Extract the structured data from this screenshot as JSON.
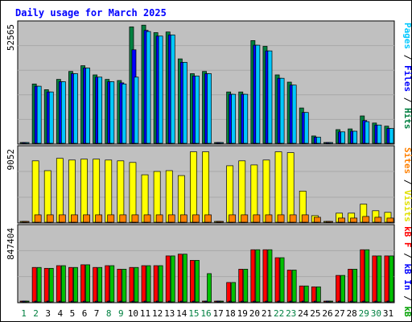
{
  "chart_data": {
    "type": "bar",
    "title": "Daily usage for March 2025",
    "days": [
      "1",
      "2",
      "3",
      "4",
      "5",
      "6",
      "7",
      "8",
      "9",
      "10",
      "11",
      "12",
      "13",
      "14",
      "15",
      "16",
      "17",
      "18",
      "19",
      "20",
      "21",
      "22",
      "23",
      "24",
      "25",
      "26",
      "27",
      "28",
      "29",
      "30",
      "31"
    ],
    "weekend_days": [
      "1",
      "2",
      "8",
      "9",
      "15",
      "16",
      "22",
      "23",
      "29",
      "30"
    ],
    "panels": [
      {
        "id": "hits",
        "max_label": "52565",
        "ymax": 52565,
        "legend": [
          "Pages",
          "Files",
          "Hits"
        ],
        "series": [
          {
            "name": "Hits",
            "color": "#008040",
            "values": [
              0,
              26000,
              23500,
              28000,
              31500,
              34000,
              30000,
              28000,
              27500,
              51000,
              51800,
              48500,
              48800,
              37000,
              30500,
              31500,
              0,
              22500,
              22500,
              45000,
              42500,
              30000,
              26800,
              15500,
              3200,
              0,
              6000,
              6300,
              12000,
              8900,
              7500
            ]
          },
          {
            "name": "Files",
            "color": "#0000ff",
            "values": [
              0,
              25000,
              22500,
              27000,
              30500,
              33000,
              29000,
              27000,
              26500,
              41000,
              49500,
              47000,
              47500,
              35500,
              29500,
              30500,
              0,
              21500,
              21500,
              43000,
              40500,
              28500,
              25500,
              13500,
              2700,
              0,
              5000,
              5300,
              10000,
              8000,
              6500
            ]
          },
          {
            "name": "Pages",
            "color": "#00c8ff",
            "values": [
              0,
              25000,
              22500,
              27000,
              30500,
              33000,
              29000,
              27000,
              26000,
              29000,
              49000,
              47000,
              47500,
              35500,
              29500,
              30500,
              0,
              21500,
              21500,
              43000,
              40500,
              28500,
              25500,
              13500,
              2700,
              0,
              5000,
              5300,
              9500,
              8000,
              6500
            ]
          }
        ]
      },
      {
        "id": "visits",
        "max_label": "9052",
        "ymax": 9052,
        "legend": [
          "Sites",
          "Visits"
        ],
        "series": [
          {
            "name": "Visits",
            "color": "#ffff00",
            "values": [
              0,
              7500,
              6300,
              7800,
              7600,
              7700,
              7700,
              7600,
              7500,
              7300,
              5800,
              6200,
              6300,
              5700,
              8600,
              8600,
              0,
              6900,
              7500,
              7000,
              7600,
              8600,
              8500,
              3800,
              800,
              0,
              1100,
              1100,
              2200,
              1400,
              1200
            ]
          },
          {
            "name": "Sites",
            "color": "#ff8000",
            "values": [
              0,
              900,
              900,
              900,
              900,
              900,
              900,
              900,
              900,
              900,
              900,
              900,
              900,
              900,
              900,
              900,
              0,
              900,
              900,
              900,
              900,
              900,
              900,
              900,
              600,
              0,
              500,
              500,
              700,
              600,
              500
            ]
          }
        ]
      },
      {
        "id": "kbytes",
        "max_label": "847404",
        "ymax": 847404,
        "legend": [
          "kB F",
          "kB In",
          "kB Out"
        ],
        "series": [
          {
            "name": "kB F",
            "color": "#ff0000",
            "values": [
              0,
              390000,
              380000,
              410000,
              390000,
              420000,
              390000,
              410000,
              370000,
              390000,
              410000,
              410000,
              520000,
              540000,
              470000,
              0,
              0,
              220000,
              370000,
              590000,
              590000,
              500000,
              360000,
              180000,
              170000,
              0,
              300000,
              370000,
              590000,
              520000,
              520000
            ]
          },
          {
            "name": "kB In",
            "color": "#0000ff",
            "values": [
              0,
              0,
              0,
              0,
              0,
              0,
              0,
              0,
              0,
              0,
              0,
              0,
              0,
              0,
              0,
              0,
              0,
              0,
              0,
              0,
              0,
              0,
              0,
              0,
              0,
              0,
              0,
              0,
              0,
              0,
              0
            ]
          },
          {
            "name": "kB Out",
            "color": "#00c000",
            "values": [
              0,
              390000,
              380000,
              410000,
              390000,
              420000,
              390000,
              410000,
              370000,
              390000,
              410000,
              410000,
              520000,
              540000,
              470000,
              320000,
              0,
              220000,
              370000,
              590000,
              590000,
              500000,
              360000,
              180000,
              170000,
              0,
              300000,
              370000,
              590000,
              520000,
              520000
            ]
          }
        ]
      }
    ]
  }
}
